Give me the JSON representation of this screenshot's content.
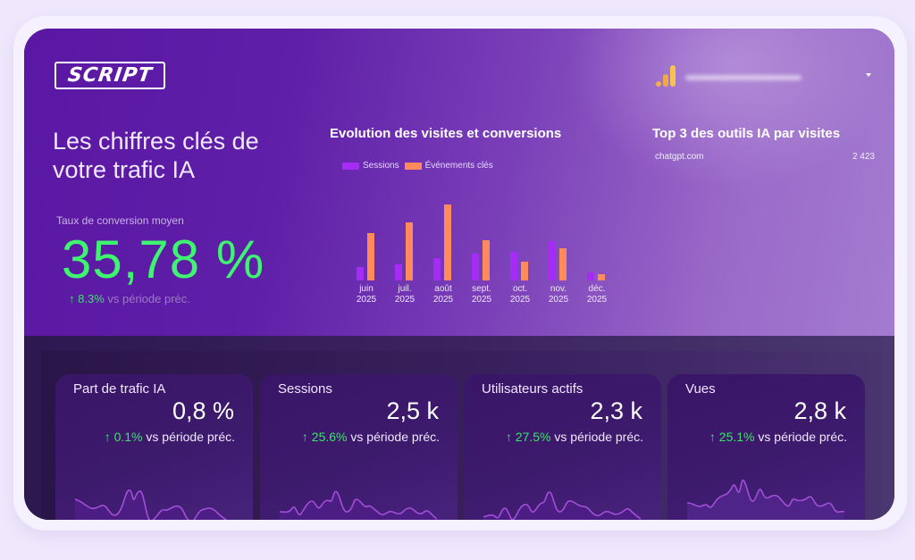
{
  "header": {
    "logo_text": "SCRIPT",
    "property_selector": {
      "value": "",
      "icon": "google-analytics-icon",
      "caret": "chevron-down-icon"
    }
  },
  "hero": {
    "title": "Les chiffres clés de votre trafic IA",
    "kpi": {
      "label": "Taux de conversion moyen",
      "value": "35,78 %",
      "delta_arrow": "↑",
      "delta": "8.3%",
      "delta_suffix": "vs période préc."
    }
  },
  "evolution": {
    "title": "Evolution des visites et conversions",
    "legend": [
      {
        "label": "Sessions",
        "color": "#a52cf5"
      },
      {
        "label": "Événements clés",
        "color": "#ff8a5c"
      }
    ]
  },
  "chart_data": {
    "type": "bar",
    "title": "Evolution des visites et conversions",
    "categories": [
      "juin 2025",
      "juil. 2025",
      "août 2025",
      "sept. 2025",
      "oct. 2025",
      "nov. 2025",
      "déc. 2025"
    ],
    "category_lines": [
      [
        "juin",
        "2025"
      ],
      [
        "juil.",
        "2025"
      ],
      [
        "août",
        "2025"
      ],
      [
        "sept.",
        "2025"
      ],
      [
        "oct.",
        "2025"
      ],
      [
        "nov.",
        "2025"
      ],
      [
        "déc.",
        "2025"
      ]
    ],
    "series": [
      {
        "name": "Sessions",
        "color": "#a52cf5",
        "values": [
          15,
          18,
          25,
          30,
          32,
          44,
          9
        ]
      },
      {
        "name": "Événements clés",
        "color": "#ff8a5c",
        "values": [
          53,
          65,
          85,
          45,
          21,
          36,
          7
        ]
      }
    ],
    "xlabel": "",
    "ylabel": "",
    "grid": false,
    "legend_position": "top-left",
    "note": "relative bar heights (no axis shown)"
  },
  "top3": {
    "title": "Top 3 des outils IA par visites",
    "rows": [
      {
        "source": "chatgpt.com",
        "value": "2 423"
      }
    ]
  },
  "metrics": [
    {
      "title": "Part de trafic IA",
      "value": "0,8 %",
      "arrow": "↑",
      "delta": "0.1%",
      "suffix": "vs période préc."
    },
    {
      "title": "Sessions",
      "value": "2,5 k",
      "arrow": "↑",
      "delta": "25.6%",
      "suffix": "vs période préc."
    },
    {
      "title": "Utilisateurs actifs",
      "value": "2,3 k",
      "arrow": "↑",
      "delta": "27.5%",
      "suffix": "vs période préc."
    },
    {
      "title": "Vues",
      "value": "2,8 k",
      "arrow": "↑",
      "delta": "25.1%",
      "suffix": "vs période préc."
    }
  ],
  "colors": {
    "accent_green": "#3df56f",
    "session_purple": "#a52cf5",
    "event_orange": "#ff8a5c",
    "sparkline": "#a24fd8"
  }
}
